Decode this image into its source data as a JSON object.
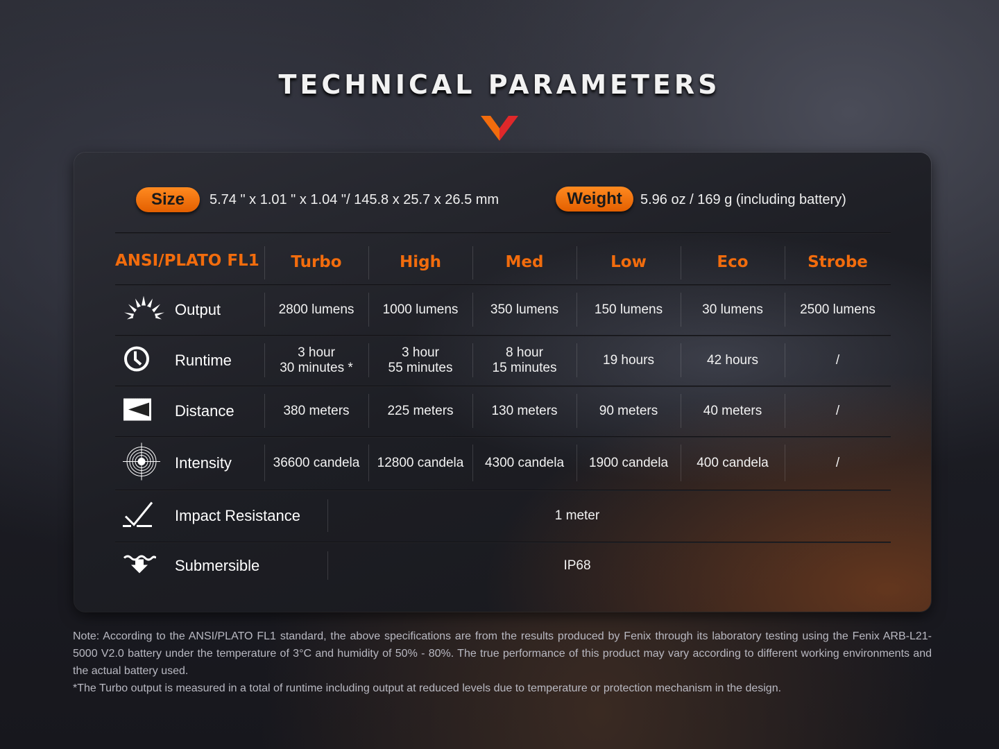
{
  "title": "TECHNICAL PARAMETERS",
  "colors": {
    "accent": "#f26c0d",
    "chevron_left": "#f26c0d",
    "chevron_right": "#e0282a"
  },
  "size": {
    "label": "Size",
    "value": "5.74 \" x 1.01 \" x 1.04 \"/ 145.8 x 25.7 x 26.5 mm"
  },
  "weight": {
    "label": "Weight",
    "value": "5.96 oz / 169 g (including battery)"
  },
  "table": {
    "header": [
      "ANSI/PLATO FL1",
      "Turbo",
      "High",
      "Med",
      "Low",
      "Eco",
      "Strobe"
    ],
    "rows": [
      {
        "label": "Output",
        "icon": "sun-rays-icon",
        "values": [
          "2800 lumens",
          "1000 lumens",
          "350 lumens",
          "150 lumens",
          "30 lumens",
          "2500 lumens"
        ]
      },
      {
        "label": "Runtime",
        "icon": "clock-icon",
        "values": [
          "3 hour\n30 minutes *",
          "3 hour\n55 minutes",
          "8 hour\n15 minutes",
          "19 hours",
          "42 hours",
          "/"
        ]
      },
      {
        "label": "Distance",
        "icon": "beam-distance-icon",
        "values": [
          "380 meters",
          "225 meters",
          "130 meters",
          "90 meters",
          "40 meters",
          "/"
        ]
      },
      {
        "label": "Intensity",
        "icon": "target-icon",
        "values": [
          "36600 candela",
          "12800 candela",
          "4300 candela",
          "1900 candela",
          "400 candela",
          "/"
        ]
      },
      {
        "label": "Impact Resistance",
        "icon": "impact-check-icon",
        "value": "1 meter"
      },
      {
        "label": "Submersible",
        "icon": "submersible-icon",
        "value": "IP68"
      }
    ]
  },
  "note": {
    "line1": "Note: According to the ANSI/PLATO FL1 standard, the above specifications are from the results produced by Fenix through its laboratory testing using the Fenix ARB-L21-5000 V2.0 battery under the temperature of 3°C and humidity of 50% - 80%. The true performance of this product may vary according to different working environments and the actual battery used.",
    "line2": "*The Turbo output is measured in a total of runtime including output at reduced levels due to temperature or protection mechanism in the design."
  }
}
